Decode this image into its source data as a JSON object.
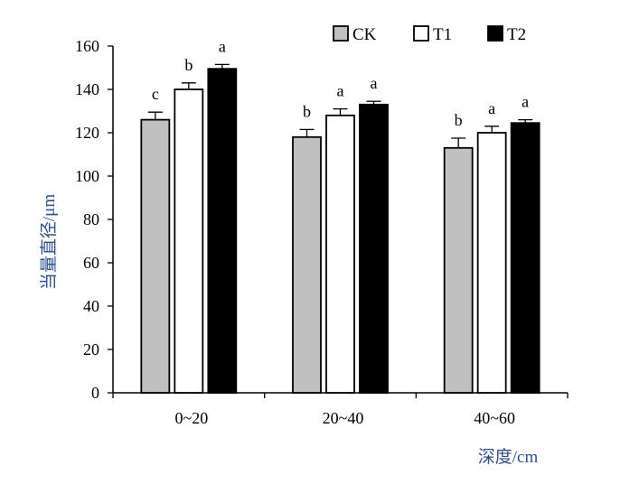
{
  "chart_data": {
    "type": "bar",
    "title": "",
    "xlabel": "深度/cm",
    "ylabel": "当量直径/μm",
    "ylim": [
      0,
      160
    ],
    "yticks": [
      0,
      20,
      40,
      60,
      80,
      100,
      120,
      140,
      160
    ],
    "categories": [
      "0~20",
      "20~40",
      "40~60"
    ],
    "legend": "top-right",
    "grid": false,
    "series": [
      {
        "name": "CK",
        "color": "#c0c0c0",
        "values": [
          126,
          118,
          113
        ],
        "errors": [
          3.5,
          3.5,
          4.5
        ],
        "labels": [
          "c",
          "b",
          "b"
        ]
      },
      {
        "name": "T1",
        "color": "#ffffff",
        "values": [
          140,
          128,
          120
        ],
        "errors": [
          3.0,
          3.0,
          3.0
        ],
        "labels": [
          "b",
          "a",
          "a"
        ]
      },
      {
        "name": "T2",
        "color": "#000000",
        "values": [
          149.5,
          133,
          124.5
        ],
        "errors": [
          2.0,
          1.5,
          1.5
        ],
        "labels": [
          "a",
          "a",
          "a"
        ]
      }
    ]
  }
}
